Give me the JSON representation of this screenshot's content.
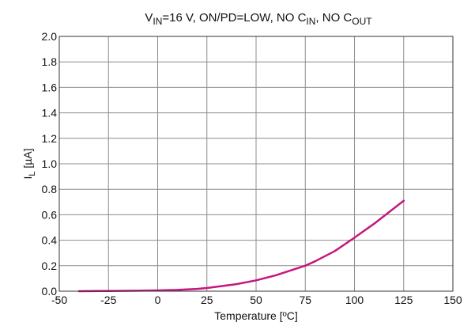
{
  "chart_data": {
    "type": "line",
    "title": {
      "parts": [
        {
          "text": "V",
          "sub": false
        },
        {
          "text": "IN",
          "sub": true
        },
        {
          "text": "=16 V, ON/PD=LOW, NO C",
          "sub": false
        },
        {
          "text": "IN",
          "sub": true
        },
        {
          "text": ", NO C",
          "sub": false
        },
        {
          "text": "OUT",
          "sub": true
        }
      ]
    },
    "xlabel": "Temperature [ºC]",
    "ylabel": {
      "main": "I",
      "sub": "L",
      "rest": " [µA]"
    },
    "xlim": [
      -50,
      150
    ],
    "ylim": [
      0,
      2.0
    ],
    "x_ticks": [
      -50,
      -25,
      0,
      25,
      50,
      75,
      100,
      125,
      150
    ],
    "y_ticks": [
      0.0,
      0.2,
      0.4,
      0.6,
      0.8,
      1.0,
      1.2,
      1.4,
      1.6,
      1.8,
      2.0
    ],
    "grid": true,
    "series": [
      {
        "color": "#c8157f",
        "x": [
          -40,
          -25,
          -10,
          0,
          10,
          20,
          25,
          30,
          40,
          50,
          60,
          70,
          75,
          80,
          90,
          100,
          110,
          125
        ],
        "y": [
          0.0,
          0.002,
          0.004,
          0.006,
          0.01,
          0.018,
          0.025,
          0.035,
          0.055,
          0.085,
          0.125,
          0.175,
          0.2,
          0.235,
          0.315,
          0.42,
          0.53,
          0.71
        ]
      }
    ]
  }
}
